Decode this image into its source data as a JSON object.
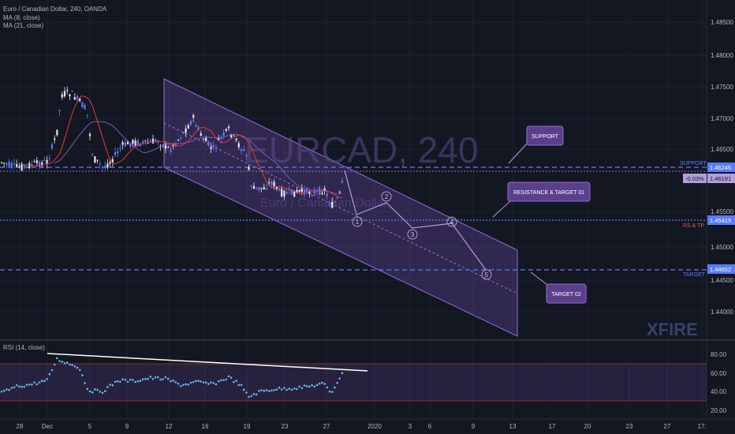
{
  "header": {
    "title": "Euro / Canadian Dollar, 240, OANDA",
    "indicators": [
      "MA (8, close)",
      "MA (21, close)"
    ]
  },
  "watermark": {
    "symbol": "EURCAD, 240",
    "name": "Euro / Canadian Dollar",
    "brand": "XFIRE"
  },
  "rsi": {
    "label": "RSI (14, close)",
    "ticks": [
      "80.00",
      "60.00",
      "40.00",
      "20.00"
    ]
  },
  "chart_data": {
    "type": "candlestick",
    "price_ticks": [
      "1.48500",
      "1.48000",
      "1.47500",
      "1.47000",
      "1.46500",
      "1.45500",
      "1.45000",
      "1.44500",
      "1.44000"
    ],
    "x_ticks": [
      "28",
      "Dec",
      "5",
      "9",
      "12",
      "16",
      "19",
      "23",
      "27",
      "2020",
      "3",
      "6",
      "9",
      "13",
      "17",
      "20",
      "23",
      "27",
      "17:"
    ],
    "levels": [
      {
        "name": "support",
        "price_label": "1.46245",
        "tag": "SUPPORT",
        "color": "#5b7cf7"
      },
      {
        "name": "current",
        "price_label": "1.46191",
        "change": "-0.03%",
        "color": "#b39ddb"
      },
      {
        "name": "rs_tp",
        "price_label": "1.45419",
        "tag": "RS & TP",
        "color": "#5b7cf7"
      },
      {
        "name": "target",
        "price_label": "1.44652",
        "tag": "TARGET",
        "color": "#5b7cf7"
      }
    ],
    "callouts": [
      "SUPPORT",
      "RESISTANCE & TARGET 01",
      "TARGET 02"
    ],
    "wave_labels": [
      "1",
      "2",
      "3",
      "4",
      "5"
    ],
    "colors": {
      "up": "#5b7cf7",
      "down": "#e8e8f0",
      "channel": "#7e57c2",
      "ma_fast": "#e53935",
      "ma_slow": "#7e57c2",
      "rsi": "#64b5f6"
    }
  }
}
